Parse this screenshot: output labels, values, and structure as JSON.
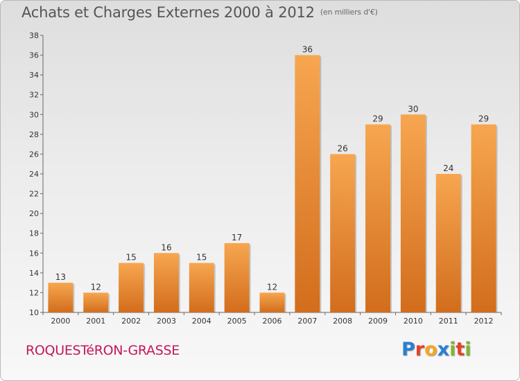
{
  "header": {
    "title": "Achats et Charges Externes 2000 à 2012",
    "unit": "(en milliers d'€)"
  },
  "footer": {
    "commune": "ROQUESTéRON-GRASSE",
    "logo_letters": [
      {
        "char": "P",
        "color": "#2a7fd4"
      },
      {
        "char": "r",
        "color": "#e8402a"
      },
      {
        "char": "o",
        "color": "#f5a623"
      },
      {
        "char": "x",
        "color": "#2a7fd4"
      },
      {
        "char": "i",
        "color": "#7cb82f"
      },
      {
        "char": "t",
        "color": "#e8402a"
      },
      {
        "char": "i",
        "color": "#7cb82f"
      }
    ]
  },
  "colors": {
    "bar_light": "#f7a650",
    "bar_dark": "#d26d1c",
    "commune": "#c2185b"
  },
  "chart_data": {
    "type": "bar",
    "categories": [
      "2000",
      "2001",
      "2002",
      "2003",
      "2004",
      "2005",
      "2006",
      "2007",
      "2008",
      "2009",
      "2010",
      "2011",
      "2012"
    ],
    "values": [
      13,
      12,
      15,
      16,
      15,
      17,
      12,
      36,
      26,
      29,
      30,
      24,
      29
    ],
    "ylim": [
      10,
      38
    ],
    "yticks": [
      10,
      12,
      14,
      16,
      18,
      20,
      22,
      24,
      26,
      28,
      30,
      32,
      34,
      36,
      38
    ],
    "grid": false
  }
}
